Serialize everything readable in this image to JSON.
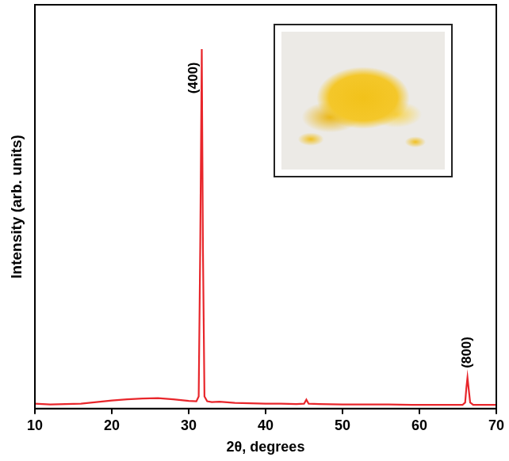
{
  "chart_data": {
    "type": "line",
    "x_label": "2θ, degrees",
    "y_label": "Intensity (arb. units)",
    "x": [
      10,
      12,
      14,
      16,
      18,
      20,
      22,
      24,
      26,
      28,
      30,
      31,
      31.3,
      31.5,
      31.7,
      31.85,
      32.05,
      32.4,
      33,
      34,
      36,
      38,
      40,
      42,
      44,
      45,
      45.3,
      45.6,
      47,
      50,
      53,
      56,
      59,
      62,
      64,
      65.6,
      65.95,
      66.1,
      66.25,
      66.4,
      66.6,
      67,
      70
    ],
    "values": [
      1.2,
      1.0,
      1.1,
      1.2,
      1.6,
      2.0,
      2.3,
      2.5,
      2.6,
      2.3,
      1.9,
      1.8,
      3.0,
      40,
      89,
      40,
      3.0,
      1.8,
      1.6,
      1.7,
      1.4,
      1.3,
      1.2,
      1.2,
      1.1,
      1.2,
      2.2,
      1.2,
      1.1,
      1.0,
      1.0,
      1.0,
      0.9,
      0.9,
      0.9,
      0.9,
      1.5,
      5,
      7.7,
      5,
      1.5,
      0.9,
      0.9
    ],
    "color": "#e8262b",
    "xlim": [
      10,
      70
    ],
    "xticks": [
      10,
      20,
      30,
      40,
      50,
      60,
      70
    ],
    "ylim": [
      0,
      100
    ],
    "yticks": [],
    "tick_labels": "x",
    "grid": false,
    "annotations": [
      {
        "text": "(400)",
        "x": 30.6,
        "y": 78
      },
      {
        "text": "(800)",
        "x": 66.25,
        "y": 10
      }
    ]
  }
}
